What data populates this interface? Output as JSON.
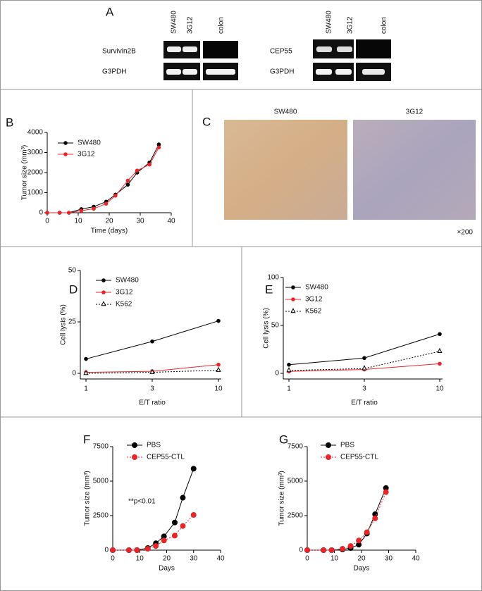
{
  "gel": {
    "panel": "A",
    "left": {
      "lanes": [
        "SW480",
        "3G12",
        "colon"
      ],
      "rows": [
        "Survivin2B",
        "G3PDH"
      ]
    },
    "right": {
      "lanes": [
        "SW480",
        "3G12",
        "colon"
      ],
      "rows": [
        "CEP55",
        "G3PDH"
      ]
    }
  },
  "histology": {
    "panel": "C",
    "labels": [
      "SW480",
      "3G12"
    ],
    "magnification": "×200"
  },
  "chart_data": [
    {
      "type": "line",
      "panel": "B",
      "xlabel": "Time (days)",
      "ylabel": "Tumor size (mm³)",
      "x": [
        0,
        4,
        7,
        11,
        15,
        19,
        22,
        26,
        29,
        33,
        36
      ],
      "xlim": [
        0,
        40
      ],
      "xticks": [
        0,
        10,
        20,
        30,
        40
      ],
      "ylim": [
        0,
        4000
      ],
      "yticks": [
        0,
        1000,
        2000,
        3000,
        4000
      ],
      "legend": "upper-left",
      "series": [
        {
          "name": "SW480",
          "color": "#000000",
          "marker": "circle",
          "values": [
            0,
            0,
            0,
            180,
            300,
            550,
            900,
            1400,
            2000,
            2500,
            3400
          ]
        },
        {
          "name": "3G12",
          "color": "#e8262a",
          "marker": "circle",
          "values": [
            0,
            0,
            0,
            100,
            200,
            450,
            850,
            1600,
            2100,
            2400,
            3250
          ]
        }
      ]
    },
    {
      "type": "line",
      "panel": "D",
      "xlabel": "E/T ratio",
      "ylabel": "Cell lysis (%)",
      "categories": [
        "1",
        "3",
        "10"
      ],
      "ylim": [
        0,
        50
      ],
      "yticks": [
        0,
        25,
        50
      ],
      "legend": "upper-left",
      "series": [
        {
          "name": "SW480",
          "color": "#000000",
          "marker": "circle",
          "values": [
            7,
            15.5,
            25.5
          ]
        },
        {
          "name": "3G12",
          "color": "#e8262a",
          "marker": "circle",
          "values": [
            0.5,
            1,
            4.2
          ]
        },
        {
          "name": "K562",
          "color": "#000000",
          "marker": "triangle-open",
          "dash": true,
          "values": [
            0,
            0.5,
            1.5
          ]
        }
      ]
    },
    {
      "type": "line",
      "panel": "E",
      "xlabel": "E/T ratio",
      "ylabel": "Cell lysis (%)",
      "categories": [
        "1",
        "3",
        "10"
      ],
      "ylim": [
        0,
        100
      ],
      "yticks": [
        0,
        50,
        100
      ],
      "legend": "upper-left",
      "series": [
        {
          "name": "SW480",
          "color": "#000000",
          "marker": "circle",
          "values": [
            9,
            16,
            41
          ]
        },
        {
          "name": "3G12",
          "color": "#e8262a",
          "marker": "circle",
          "values": [
            2,
            4,
            10
          ]
        },
        {
          "name": "K562",
          "color": "#000000",
          "marker": "triangle-open",
          "dash": true,
          "values": [
            3,
            5,
            23
          ]
        }
      ]
    },
    {
      "type": "line",
      "panel": "F",
      "xlabel": "Days",
      "ylabel": "Tumor size (mm³)",
      "annotation": "**p<0.01",
      "x": [
        0,
        6,
        9,
        13,
        16,
        19,
        23,
        26,
        30
      ],
      "xlim": [
        0,
        40
      ],
      "xticks": [
        0,
        10,
        20,
        30,
        40
      ],
      "ylim": [
        0,
        7500
      ],
      "yticks": [
        0,
        2500,
        5000,
        7500
      ],
      "legend": "upper-left",
      "series": [
        {
          "name": "PBS",
          "color": "#000000",
          "marker": "circle",
          "values": [
            0,
            0,
            0,
            150,
            500,
            1000,
            2000,
            3800,
            5900
          ]
        },
        {
          "name": "CEP55-CTL",
          "color": "#e8262a",
          "marker": "circle",
          "dash": true,
          "values": [
            0,
            0,
            0,
            100,
            300,
            700,
            1050,
            1750,
            2550
          ]
        }
      ]
    },
    {
      "type": "line",
      "panel": "G",
      "xlabel": "Days",
      "ylabel": "Tumor size (mm³)",
      "x": [
        0,
        6,
        9,
        13,
        16,
        19,
        22,
        25,
        29
      ],
      "xlim": [
        0,
        40
      ],
      "xticks": [
        0,
        10,
        20,
        30,
        40
      ],
      "ylim": [
        0,
        7500
      ],
      "yticks": [
        0,
        2500,
        5000,
        7500
      ],
      "legend": "upper-left",
      "series": [
        {
          "name": "PBS",
          "color": "#000000",
          "marker": "circle",
          "values": [
            0,
            0,
            0,
            50,
            150,
            400,
            1200,
            2600,
            4500
          ]
        },
        {
          "name": "CEP55-CTL",
          "color": "#e8262a",
          "marker": "circle",
          "dash": true,
          "values": [
            0,
            0,
            0,
            100,
            300,
            700,
            1300,
            2300,
            4200
          ]
        }
      ]
    }
  ]
}
